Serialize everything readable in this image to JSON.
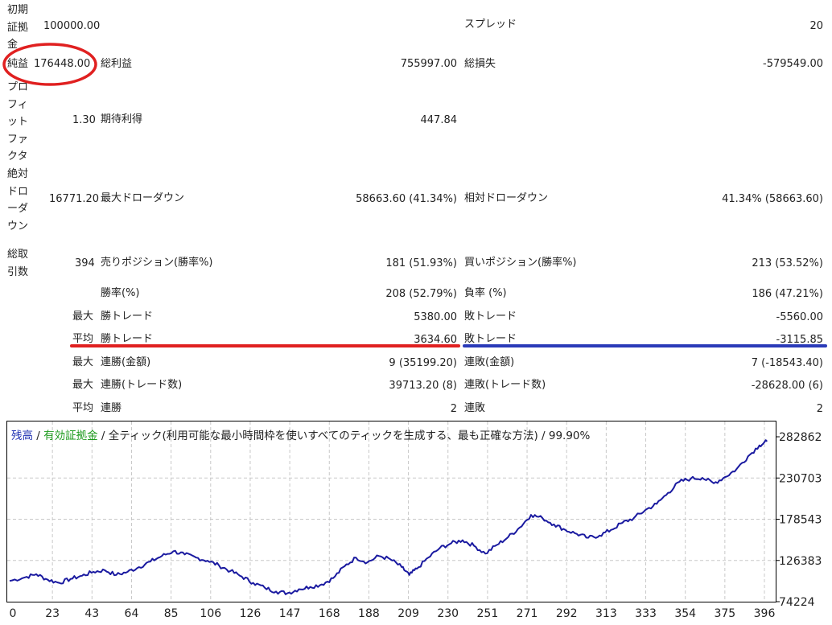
{
  "stats": {
    "initial_deposit_label": "初期証拠金",
    "initial_deposit": "100000.00",
    "spread_label": "スプレッド",
    "spread": "20",
    "net_profit_label": "純益",
    "net_profit": "176448.00",
    "gross_profit_label": "総利益",
    "gross_profit": "755997.00",
    "gross_loss_label": "総損失",
    "gross_loss": "-579549.00",
    "profit_factor_label": "プロフィットファクタ",
    "profit_factor": "1.30",
    "expected_payoff_label": "期待利得",
    "expected_payoff": "447.84",
    "abs_drawdown_label": "絶対ドローダウン",
    "abs_drawdown": "16771.20",
    "max_drawdown_label": "最大ドローダウン",
    "max_drawdown": "58663.60 (41.34%)",
    "rel_drawdown_label": "相対ドローダウン",
    "rel_drawdown": "41.34% (58663.60)",
    "total_trades_label": "総取引数",
    "total_trades": "394",
    "short_positions_label": "売りポジション(勝率%)",
    "short_positions": "181 (51.93%)",
    "long_positions_label": "買いポジション(勝率%)",
    "long_positions": "213 (53.52%)",
    "win_rate_label": "勝率(%)",
    "win_rate": "208 (52.79%)",
    "loss_rate_label": "負率 (%)",
    "loss_rate": "186 (47.21%)",
    "max_label": "最大",
    "avg_label": "平均",
    "largest_win_label": "勝トレード",
    "largest_win": "5380.00",
    "largest_loss_label": "敗トレード",
    "largest_loss": "-5560.00",
    "avg_win_label": "勝トレード",
    "avg_win": "3634.60",
    "avg_loss_label": "敗トレード",
    "avg_loss": "-3115.85",
    "max_consec_wins_money_label": "連勝(金額)",
    "max_consec_wins_money": "9 (35199.20)",
    "max_consec_losses_money_label": "連敗(金額)",
    "max_consec_losses_money": "7 (-18543.40)",
    "max_consec_profit_label": "連勝(トレード数)",
    "max_consec_profit": "39713.20 (8)",
    "max_consec_loss_label": "連敗(トレード数)",
    "max_consec_loss": "-28628.00 (6)",
    "avg_consec_wins_label": "連勝",
    "avg_consec_wins": "2",
    "avg_consec_losses_label": "連敗",
    "avg_consec_losses": "2"
  },
  "annotations": {
    "circle_color": "#e02020",
    "red_underline_color": "#e02020",
    "blue_underline_color": "#2a3ab8"
  },
  "legend": {
    "balance": "残高",
    "sep1": " / ",
    "equity": "有効証拠金",
    "sep2": " / ",
    "model": "全ティック(利用可能な最小時間枠を使いすべてのティックを生成する、最も正確な方法)",
    "sep3": " / ",
    "quality": "99.90%"
  },
  "chart_data": {
    "type": "line",
    "title": "",
    "xlabel": "",
    "ylabel": "",
    "x_ticks": [
      "0",
      "23",
      "43",
      "64",
      "85",
      "106",
      "126",
      "147",
      "168",
      "188",
      "209",
      "230",
      "251",
      "271",
      "292",
      "313",
      "333",
      "354",
      "375",
      "396"
    ],
    "y_ticks": [
      "282862",
      "230703",
      "178543",
      "126383",
      "74224"
    ],
    "ylim": [
      74224,
      282862
    ],
    "xlim": [
      0,
      400
    ],
    "grid": true,
    "series": [
      {
        "color": "#1a1aa0",
        "x": [
          0,
          8,
          14,
          20,
          26,
          32,
          38,
          44,
          50,
          56,
          62,
          68,
          74,
          80,
          86,
          92,
          98,
          104,
          110,
          116,
          122,
          128,
          134,
          140,
          146,
          152,
          158,
          164,
          170,
          176,
          182,
          188,
          194,
          200,
          206,
          210,
          214,
          220,
          226,
          232,
          238,
          244,
          250,
          256,
          262,
          268,
          274,
          280,
          286,
          292,
          298,
          304,
          310,
          316,
          322,
          328,
          334,
          340,
          346,
          352,
          358,
          364,
          370,
          376,
          382,
          388,
          394,
          398
        ],
        "y": [
          100500,
          105000,
          109000,
          102000,
          98000,
          103000,
          107000,
          112000,
          114000,
          108000,
          112000,
          118000,
          125000,
          132000,
          138000,
          134000,
          130000,
          126000,
          120000,
          113000,
          106000,
          98000,
          92000,
          87000,
          85000,
          90000,
          93000,
          96000,
          104000,
          119000,
          130000,
          124000,
          132000,
          128000,
          118000,
          108000,
          116000,
          130000,
          142000,
          148000,
          152000,
          145000,
          135000,
          146000,
          156000,
          168000,
          184000,
          180000,
          172000,
          165000,
          160000,
          155000,
          158000,
          165000,
          174000,
          180000,
          190000,
          198000,
          212000,
          226000,
          230000,
          231000,
          224000,
          232000,
          242000,
          258000,
          272000,
          277000
        ]
      }
    ]
  }
}
